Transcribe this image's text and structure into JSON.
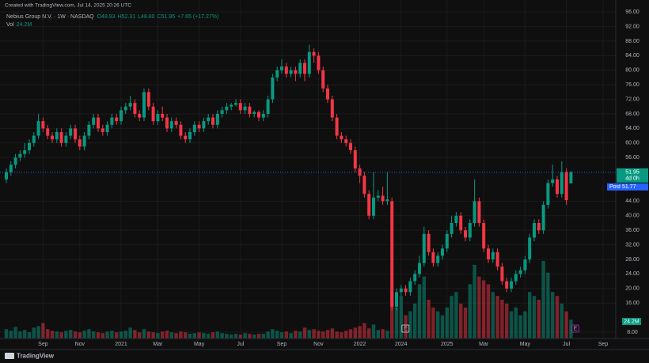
{
  "header": {
    "created": "Created with TradingView.com, Jul 14, 2025 20:26 UTC"
  },
  "footer": {
    "brand": "TradingView"
  },
  "chart_data": {
    "type": "candlestick",
    "legend": {
      "symbol": "Nebius Group N.V. · 1W · NASDAQ",
      "ohlc": [
        "O48.93",
        "H52.31",
        "L48.80",
        "C51.95",
        "+7.65 (+17.27%)"
      ],
      "volume": "Vol"
    },
    "volume_label": "24.2M",
    "countdown": "4d 0h",
    "post_market": {
      "label": "Post",
      "value": 51.77
    },
    "events": [
      "E",
      "E"
    ],
    "up_color": "#089981",
    "down_color": "#f23645",
    "categories": [
      null,
      null,
      null,
      null,
      null,
      null,
      null,
      null,
      "Sep",
      null,
      null,
      null,
      null,
      null,
      null,
      null,
      "Nov",
      null,
      null,
      null,
      null,
      null,
      null,
      null,
      null,
      "2021",
      null,
      null,
      null,
      null,
      null,
      null,
      null,
      "Mar",
      null,
      null,
      null,
      null,
      null,
      null,
      null,
      null,
      "May",
      null,
      null,
      null,
      null,
      null,
      null,
      null,
      null,
      "Jul",
      null,
      null,
      null,
      null,
      null,
      null,
      null,
      null,
      "Sep",
      null,
      null,
      null,
      null,
      null,
      null,
      null,
      "Nov",
      null,
      null,
      null,
      null,
      null,
      null,
      null,
      null,
      "2022",
      null,
      null,
      null,
      null,
      null,
      null,
      null,
      null,
      "2024",
      null,
      null,
      null,
      null,
      null,
      null,
      null,
      null,
      null,
      "2025",
      null,
      null,
      null,
      null,
      null,
      null,
      null,
      "Mar",
      null,
      null,
      null,
      null,
      null,
      null,
      null,
      null,
      "May",
      null,
      null,
      null,
      null,
      null,
      null,
      null,
      null,
      "Jul",
      null,
      null,
      null,
      null,
      null,
      null,
      null,
      "Sep"
    ],
    "open": [
      50,
      52,
      54,
      56,
      57,
      58,
      60,
      62,
      66,
      64,
      62,
      61,
      63,
      60,
      62,
      64,
      61,
      59,
      62,
      65,
      67,
      64,
      63,
      65,
      67,
      66,
      69,
      70,
      71,
      68,
      67,
      74,
      70,
      66,
      68,
      67,
      64,
      66,
      65,
      62,
      61,
      63,
      65,
      64,
      66,
      67,
      65,
      68,
      69,
      70,
      70.5,
      71,
      69,
      70,
      68,
      68.5,
      67,
      68,
      72,
      78,
      80,
      81,
      79,
      80,
      79,
      82,
      79,
      85,
      84,
      80,
      75,
      72,
      67,
      62,
      61,
      60,
      58,
      53,
      51,
      46,
      40,
      45,
      45.5,
      44,
      44,
      15,
      19,
      20,
      19,
      22,
      24,
      27,
      35,
      30,
      27,
      29,
      31,
      35,
      38,
      40,
      36,
      34,
      38,
      44,
      38,
      31,
      28,
      30,
      26,
      22,
      20,
      22,
      24,
      25,
      28,
      34,
      38,
      36,
      43,
      49,
      50,
      46,
      52,
      48.93,
      null,
      null,
      null,
      null,
      null,
      null,
      null
    ],
    "high": [
      53,
      55,
      57,
      58,
      60,
      61,
      63,
      68,
      67,
      65,
      63,
      64,
      64,
      63,
      65,
      65,
      62,
      63,
      66,
      68,
      68,
      65,
      66,
      68,
      68,
      70,
      71,
      73,
      72,
      69,
      75,
      75,
      71,
      69,
      70,
      68,
      67,
      67,
      66,
      63,
      64,
      66,
      66,
      67,
      68,
      68,
      69,
      70,
      71,
      71,
      72,
      72,
      71,
      71,
      69,
      69,
      69,
      73,
      79,
      81,
      83,
      82,
      81,
      81,
      83,
      83,
      87,
      86,
      85,
      81,
      76,
      73,
      68,
      63,
      62,
      61,
      59,
      54,
      52,
      47,
      52,
      47,
      48,
      52,
      45,
      20,
      21,
      21,
      23,
      25,
      29,
      37,
      36,
      31,
      30,
      32,
      36,
      40,
      41,
      41,
      37,
      39,
      50,
      45,
      39,
      32,
      31,
      31,
      27,
      23,
      23,
      25,
      26,
      29,
      35,
      39,
      39,
      44,
      50,
      54,
      51,
      55,
      53,
      52.31,
      null,
      null,
      null,
      null,
      null,
      null,
      null
    ],
    "low": [
      49,
      51,
      53,
      55,
      56,
      57,
      59,
      61,
      63,
      61,
      60,
      60,
      59,
      59,
      61,
      60,
      58,
      58,
      61,
      64,
      63,
      62,
      62,
      64,
      65,
      65,
      68,
      69,
      67,
      66,
      66,
      69,
      65,
      65,
      66,
      63,
      63,
      64,
      61,
      60,
      60,
      62,
      63,
      63,
      65,
      64,
      64,
      67,
      68,
      69,
      70,
      68,
      68,
      67,
      67,
      66,
      66,
      67,
      71,
      77,
      79,
      78,
      78,
      77,
      78,
      77,
      78,
      82,
      79,
      74,
      71,
      66,
      61,
      60,
      59,
      57,
      52,
      49,
      45,
      39,
      39,
      44,
      43,
      43,
      14,
      14,
      18,
      18,
      18,
      21,
      23,
      26,
      29,
      26,
      26,
      28,
      30,
      34,
      37,
      35,
      33,
      33,
      37,
      37,
      30,
      27,
      27,
      25,
      21,
      19,
      19,
      21,
      23,
      24,
      27,
      33,
      35,
      35,
      42,
      48,
      45,
      45,
      43,
      48.8,
      null,
      null,
      null,
      null,
      null,
      null,
      null
    ],
    "close": [
      52,
      54,
      56,
      57,
      58,
      60,
      62,
      66,
      64,
      62,
      61,
      63,
      60,
      62,
      64,
      61,
      59,
      62,
      65,
      67,
      64,
      63,
      65,
      67,
      66,
      69,
      70,
      71,
      68,
      67,
      74,
      70,
      66,
      68,
      67,
      64,
      66,
      65,
      62,
      61,
      63,
      65,
      64,
      66,
      67,
      65,
      68,
      69,
      70,
      70.5,
      71,
      69,
      70,
      68,
      68.5,
      67,
      68,
      72,
      78,
      80,
      81,
      79,
      80,
      79,
      82,
      79,
      85,
      84,
      80,
      75,
      72,
      67,
      62,
      61,
      60,
      58,
      53,
      51,
      46,
      40,
      45,
      45.5,
      44,
      44.5,
      15,
      19,
      20,
      19,
      22,
      24,
      27,
      35,
      30,
      27,
      29,
      31,
      35,
      38,
      40,
      36,
      34,
      38,
      44,
      38,
      31,
      28,
      30,
      26,
      22,
      20,
      22,
      24,
      25,
      28,
      34,
      38,
      36,
      43,
      49,
      50,
      46,
      52,
      44.3,
      51.95,
      null,
      null,
      null,
      null,
      null,
      null,
      null
    ],
    "volume": [
      12,
      10,
      15,
      9,
      11,
      8,
      14,
      16,
      20,
      12,
      10,
      9,
      8,
      10,
      11,
      9,
      8,
      10,
      12,
      9,
      8,
      7,
      9,
      10,
      8,
      9,
      10,
      14,
      11,
      8,
      12,
      9,
      8,
      7,
      9,
      10,
      8,
      7,
      9,
      8,
      6,
      7,
      8,
      7,
      6,
      8,
      9,
      7,
      6,
      5,
      6,
      5,
      7,
      6,
      5,
      6,
      6,
      9,
      12,
      10,
      8,
      9,
      7,
      10,
      9,
      14,
      11,
      12,
      10,
      9,
      11,
      13,
      9,
      8,
      10,
      12,
      14,
      16,
      20,
      13,
      18,
      11,
      12,
      10,
      60,
      40,
      55,
      30,
      35,
      45,
      70,
      80,
      50,
      40,
      35,
      30,
      40,
      55,
      60,
      45,
      40,
      70,
      95,
      80,
      75,
      70,
      60,
      55,
      50,
      45,
      35,
      40,
      30,
      35,
      60,
      55,
      50,
      100,
      85,
      60,
      55,
      45,
      35,
      24.2,
      null,
      null,
      null,
      null,
      null,
      null,
      null
    ],
    "ylim": [
      6.26,
      99.3
    ],
    "yticks": [
      {
        "value": 96,
        "label": "96.00"
      },
      {
        "value": 92,
        "label": "92.00"
      },
      {
        "value": 88,
        "label": "88.00"
      },
      {
        "value": 84,
        "label": "84.00"
      },
      {
        "value": 80,
        "label": "80.00"
      },
      {
        "value": 76,
        "label": "76.00"
      },
      {
        "value": 72,
        "label": "72.00"
      },
      {
        "value": 68,
        "label": "68.00"
      },
      {
        "value": 64,
        "label": "64.00"
      },
      {
        "value": 60,
        "label": "60.00"
      },
      {
        "value": 56,
        "label": "56.00"
      },
      {
        "value": 44,
        "label": "44.00"
      },
      {
        "value": 40,
        "label": "40.00"
      },
      {
        "value": 36,
        "label": "36.00"
      },
      {
        "value": 32,
        "label": "32.00"
      },
      {
        "value": 28,
        "label": "28.00"
      },
      {
        "value": 24,
        "label": "24.00"
      },
      {
        "value": 20,
        "label": "20.00"
      },
      {
        "value": 16,
        "label": "16.00"
      },
      {
        "value": 8,
        "label": "8.00"
      }
    ],
    "grid": true
  }
}
